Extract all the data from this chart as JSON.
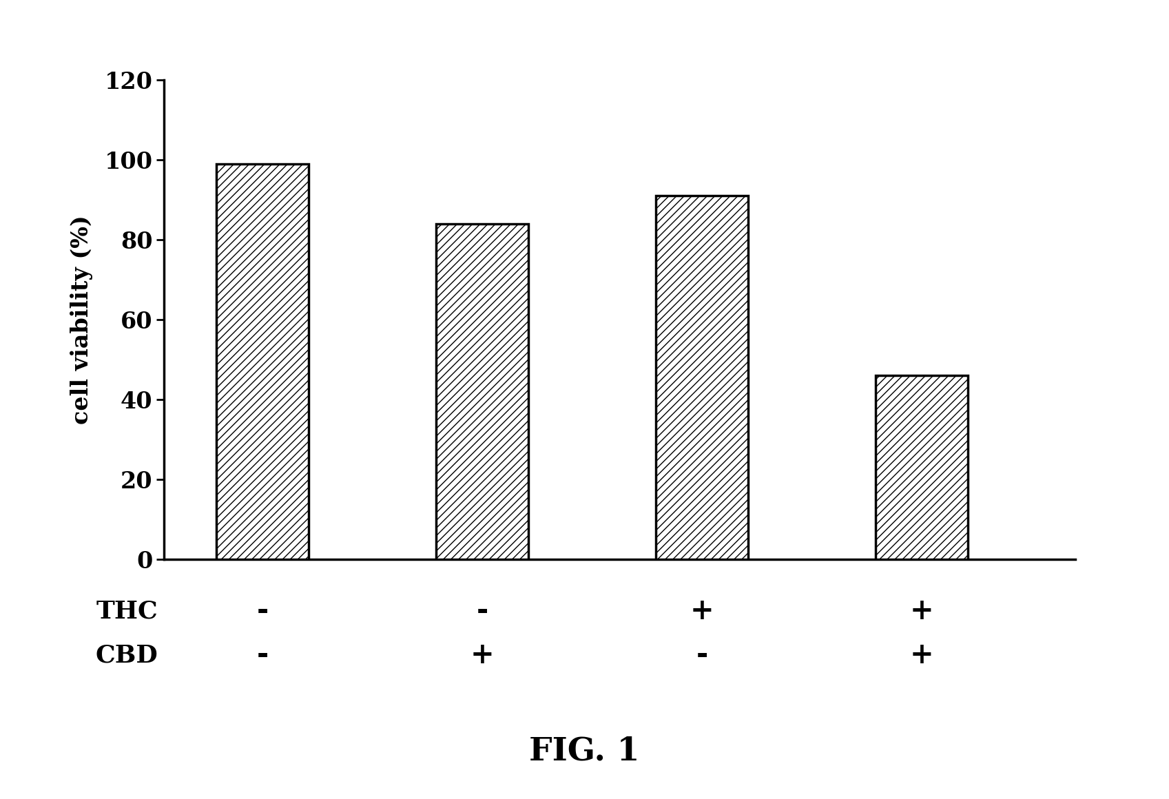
{
  "values": [
    99,
    84,
    91,
    46
  ],
  "x_positions": [
    1,
    2,
    3,
    4
  ],
  "bar_width": 0.42,
  "thc_labels": [
    "-",
    "-",
    "+",
    "+"
  ],
  "cbd_labels": [
    "-",
    "+",
    "-",
    "+"
  ],
  "ylabel": "cell viability (%)",
  "ylim": [
    0,
    120
  ],
  "yticks": [
    0,
    20,
    40,
    60,
    80,
    100,
    120
  ],
  "bar_color": "#ffffff",
  "bar_edgecolor": "#000000",
  "hatch": "///",
  "title": "FIG. 1",
  "title_fontsize": 34,
  "background_color": "#ffffff",
  "bar_linewidth": 2.5,
  "spine_linewidth": 2.5,
  "thc_label": "THC",
  "cbd_label": "CBD",
  "label_fontsize": 26,
  "tick_fontsize": 24,
  "ylabel_fontsize": 24,
  "xlim": [
    0.55,
    4.7
  ]
}
